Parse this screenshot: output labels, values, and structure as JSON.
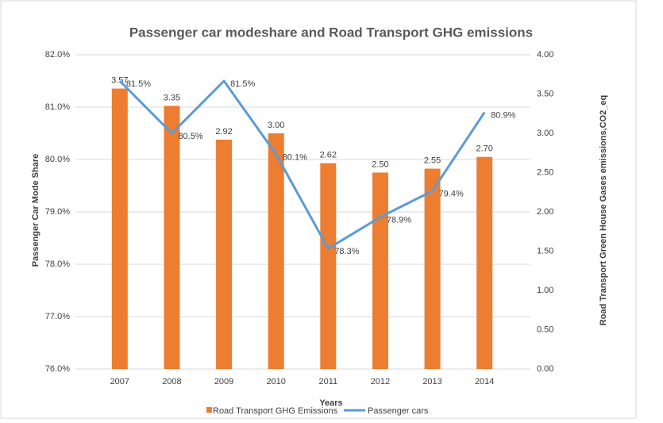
{
  "chart_data": {
    "type": "bar_line",
    "title": "Passenger car modeshare and Road Transport GHG emissions",
    "x_label": "Years",
    "y_label": "Passenger Car  Mode Share",
    "y2_label": "Road Transport Green House Gases  emissions,CO2_eq",
    "categories": [
      "2007",
      "2008",
      "2009",
      "2010",
      "2011",
      "2012",
      "2013",
      "2014"
    ],
    "series": [
      {
        "name": "Road Transport GHG Emissions",
        "type": "bar",
        "axis": "y2",
        "color": "#ed7d31",
        "values": [
          3.57,
          3.35,
          2.92,
          3.0,
          2.62,
          2.5,
          2.55,
          2.7
        ],
        "value_labels": [
          "3.57",
          "3.35",
          "2.92",
          "3.00",
          "2.62",
          "2.50",
          "2.55",
          "2.70"
        ]
      },
      {
        "name": "Passenger cars",
        "type": "line",
        "axis": "y",
        "color": "#5b9bd5",
        "values": [
          81.5,
          80.5,
          81.5,
          80.1,
          78.3,
          78.9,
          79.4,
          80.9
        ],
        "value_labels": [
          "81.5%",
          "80.5%",
          "81.5%",
          "80.1%",
          "78.3%",
          "78.9%",
          "79.4%",
          "80.9%"
        ]
      }
    ],
    "ylim": [
      76,
      82
    ],
    "yticks": [
      {
        "value": 76,
        "label": "76.0%"
      },
      {
        "value": 77,
        "label": "77.0%"
      },
      {
        "value": 78,
        "label": "78.0%"
      },
      {
        "value": 79,
        "label": "79.0%"
      },
      {
        "value": 80,
        "label": "80.0%"
      },
      {
        "value": 81,
        "label": "81.0%"
      },
      {
        "value": 82,
        "label": "82.0%"
      }
    ],
    "y2lim": [
      0,
      4
    ],
    "y2ticks": [
      {
        "value": 0,
        "label": "0.00"
      },
      {
        "value": 0.5,
        "label": "0.50"
      },
      {
        "value": 1,
        "label": "1.00"
      },
      {
        "value": 1.5,
        "label": "1.50"
      },
      {
        "value": 2,
        "label": "2.00"
      },
      {
        "value": 2.5,
        "label": "2.50"
      },
      {
        "value": 3,
        "label": "3.00"
      },
      {
        "value": 3.5,
        "label": "3.50"
      },
      {
        "value": 4,
        "label": "4.00"
      }
    ],
    "grid": true,
    "legend": "bottom"
  }
}
